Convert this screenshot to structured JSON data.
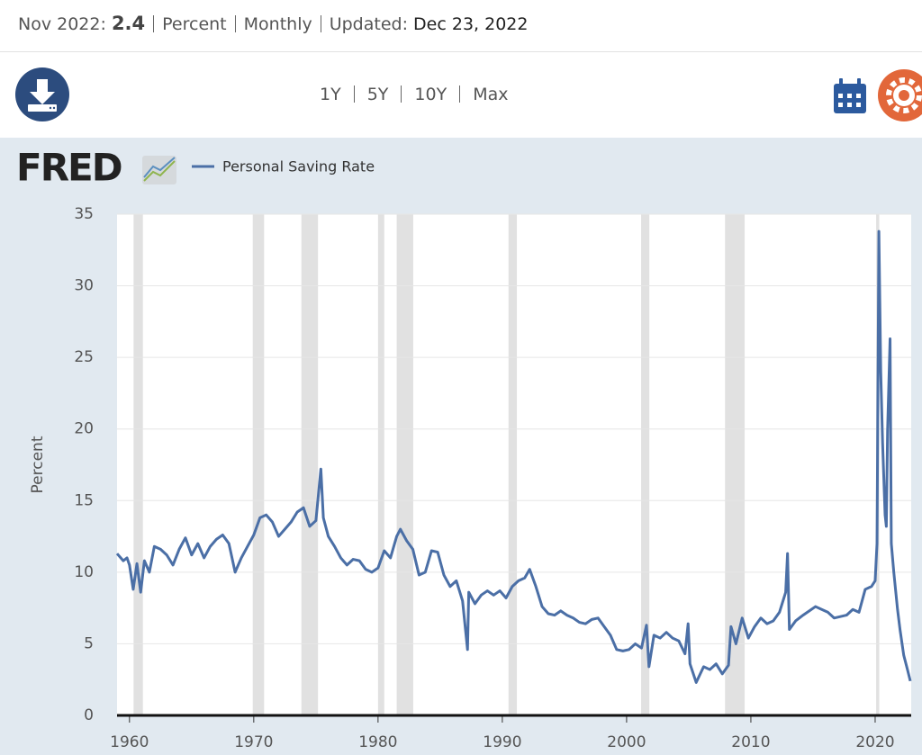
{
  "header": {
    "date": "Nov 2022:",
    "value": "2.4",
    "units": "Percent",
    "frequency": "Monthly",
    "updated_label": "Updated:",
    "updated": "Dec 23, 2022"
  },
  "range_buttons": [
    "1Y",
    "5Y",
    "10Y",
    "Max"
  ],
  "logo": "FRED",
  "chart_data": {
    "type": "line",
    "ylabel": "Percent",
    "x": [
      1959.0,
      1959.5,
      1959.8,
      1960.0,
      1960.3,
      1960.6,
      1960.9,
      1961.2,
      1961.6,
      1962.0,
      1962.5,
      1963.0,
      1963.5,
      1964.0,
      1964.5,
      1965.0,
      1965.5,
      1966.0,
      1966.5,
      1967.0,
      1967.5,
      1968.0,
      1968.5,
      1969.0,
      1969.5,
      1970.0,
      1970.5,
      1971.0,
      1971.5,
      1972.0,
      1972.5,
      1973.0,
      1973.5,
      1974.0,
      1974.5,
      1975.0,
      1975.4,
      1975.6,
      1976.0,
      1976.5,
      1977.0,
      1977.5,
      1978.0,
      1978.5,
      1979.0,
      1979.5,
      1980.0,
      1980.5,
      1981.0,
      1981.5,
      1981.8,
      1982.3,
      1982.8,
      1983.3,
      1983.8,
      1984.3,
      1984.8,
      1985.3,
      1985.8,
      1986.3,
      1986.8,
      1987.2,
      1987.3,
      1987.8,
      1988.3,
      1988.8,
      1989.3,
      1989.8,
      1990.3,
      1990.8,
      1991.3,
      1991.8,
      1992.2,
      1992.7,
      1993.2,
      1993.7,
      1994.2,
      1994.7,
      1995.2,
      1995.7,
      1996.2,
      1996.7,
      1997.2,
      1997.7,
      1998.2,
      1998.7,
      1999.2,
      1999.7,
      2000.2,
      2000.7,
      2001.2,
      2001.6,
      2001.8,
      2002.2,
      2002.7,
      2003.2,
      2003.7,
      2004.2,
      2004.7,
      2004.95,
      2005.1,
      2005.6,
      2006.2,
      2006.7,
      2007.2,
      2007.7,
      2008.2,
      2008.4,
      2008.8,
      2009.3,
      2009.8,
      2010.3,
      2010.8,
      2011.3,
      2011.8,
      2012.3,
      2012.8,
      2012.95,
      2013.1,
      2013.6,
      2014.2,
      2014.7,
      2015.2,
      2015.7,
      2016.2,
      2016.7,
      2017.2,
      2017.7,
      2018.2,
      2018.7,
      2019.2,
      2019.7,
      2020.0,
      2020.15,
      2020.3,
      2020.45,
      2020.6,
      2020.8,
      2020.9,
      2021.0,
      2021.2,
      2021.3,
      2021.5,
      2021.8,
      2022.0,
      2022.3,
      2022.6,
      2022.83
    ],
    "series": [
      {
        "name": "Personal Saving Rate",
        "color": "#4b6fa6",
        "values": [
          11.3,
          10.8,
          11.0,
          10.5,
          8.8,
          10.6,
          8.6,
          10.8,
          10.0,
          11.8,
          11.6,
          11.2,
          10.5,
          11.6,
          12.4,
          11.2,
          12.0,
          11.0,
          11.8,
          12.3,
          12.6,
          12.0,
          10.0,
          11.0,
          11.8,
          12.6,
          13.8,
          14.0,
          13.5,
          12.5,
          13.0,
          13.5,
          14.2,
          14.5,
          13.2,
          13.6,
          17.2,
          13.8,
          12.5,
          11.8,
          11.0,
          10.5,
          10.9,
          10.8,
          10.2,
          10.0,
          10.3,
          11.5,
          11.0,
          12.5,
          13.0,
          12.2,
          11.6,
          9.8,
          10.0,
          11.5,
          11.4,
          9.8,
          9.0,
          9.4,
          8.0,
          4.6,
          8.6,
          7.8,
          8.4,
          8.7,
          8.4,
          8.7,
          8.2,
          9.0,
          9.4,
          9.6,
          10.2,
          9.0,
          7.6,
          7.1,
          7.0,
          7.3,
          7.0,
          6.8,
          6.5,
          6.4,
          6.7,
          6.8,
          6.2,
          5.6,
          4.6,
          4.5,
          4.6,
          5.0,
          4.7,
          6.3,
          3.4,
          5.6,
          5.4,
          5.8,
          5.4,
          5.2,
          4.3,
          6.4,
          3.6,
          2.3,
          3.4,
          3.2,
          3.6,
          2.9,
          3.5,
          6.2,
          5.0,
          6.8,
          5.4,
          6.2,
          6.8,
          6.4,
          6.6,
          7.2,
          8.6,
          11.3,
          6.0,
          6.6,
          7.0,
          7.3,
          7.6,
          7.4,
          7.2,
          6.8,
          6.9,
          7.0,
          7.4,
          7.2,
          8.8,
          9.0,
          9.4,
          12.0,
          33.8,
          24.0,
          19.0,
          14.0,
          13.2,
          19.9,
          26.3,
          12.0,
          10.0,
          7.4,
          6.0,
          4.2,
          3.2,
          2.4
        ]
      }
    ],
    "recessions": [
      [
        1960.33,
        1961.08
      ],
      [
        1969.92,
        1970.83
      ],
      [
        1973.83,
        1975.17
      ],
      [
        1980.0,
        1980.5
      ],
      [
        1981.5,
        1982.83
      ],
      [
        1990.5,
        1991.17
      ],
      [
        2001.17,
        2001.83
      ],
      [
        2007.92,
        2009.5
      ],
      [
        2020.08,
        2020.33
      ]
    ],
    "recession_color": "#e1e1e1",
    "xlim": [
      1959.0,
      2022.9
    ],
    "ylim": [
      0,
      35
    ],
    "xticks": [
      1960,
      1970,
      1980,
      1990,
      2000,
      2010,
      2020
    ],
    "yticks": [
      0,
      5,
      10,
      15,
      20,
      25,
      30,
      35
    ],
    "grid": true
  }
}
